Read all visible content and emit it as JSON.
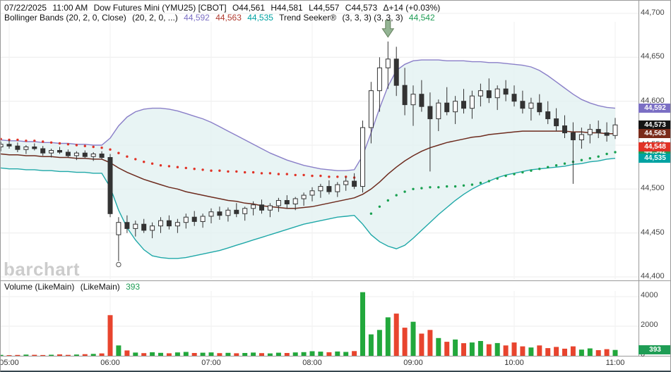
{
  "header": {
    "line1": {
      "date": "07/22/2025",
      "time": "11:00 AM",
      "symbol": "Dow Futures Mini (YMU25) [CBOT]",
      "open": "O44,561",
      "high": "H44,581",
      "low": "L44,557",
      "close": "C44,573",
      "change": "Δ+14 (+0.03%)"
    },
    "line2": {
      "bollinger_label": "Bollinger Bands (20, 2, 0, Close)",
      "bollinger_params": "(20, 2, 0, ...)",
      "bollinger_upper": "44,592",
      "bollinger_middle": "44,563",
      "bollinger_lower": "44,535",
      "trend_label": "Trend Seeker®",
      "trend_params": "(3, 3, 3)  (3, 3, 3)",
      "trend_value": "44,542"
    }
  },
  "watermark": "barchart",
  "volume_header": {
    "label": "Volume (LikeMain)",
    "params": "(LikeMain)",
    "value": "393"
  },
  "price_axis": {
    "ticks": [
      {
        "label": "44,700",
        "value": 44700
      },
      {
        "label": "44,650",
        "value": 44650
      },
      {
        "label": "44,600",
        "value": 44600
      },
      {
        "label": "44,550",
        "value": 44550
      },
      {
        "label": "44,500",
        "value": 44500
      },
      {
        "label": "44,450",
        "value": 44450
      },
      {
        "label": "44,400",
        "value": 44400
      }
    ],
    "badges": [
      {
        "label": "44,592",
        "value": 44592,
        "color": "#7b6fc4"
      },
      {
        "label": "44,573",
        "value": 44573,
        "color": "#141414"
      },
      {
        "label": "44,563",
        "value": 44563,
        "color": "#7a2b1a"
      },
      {
        "label": "44,542",
        "value": 44542,
        "color": "#1f9d55"
      },
      {
        "label": "44,548",
        "value": 44548,
        "color": "#e03226"
      },
      {
        "label": "44,535",
        "value": 44535,
        "color": "#00a2a2"
      }
    ]
  },
  "volume_axis": {
    "ticks": [
      {
        "label": "4000",
        "value": 4000
      },
      {
        "label": "2000",
        "value": 2000
      },
      {
        "label": "0",
        "value": 0
      }
    ],
    "badge": {
      "label": "393",
      "value": 393,
      "color": "#1f9d55"
    }
  },
  "time_axis": {
    "labels": [
      {
        "label": "05:00",
        "index": 1
      },
      {
        "label": "06:00",
        "index": 13
      },
      {
        "label": "07:00",
        "index": 25
      },
      {
        "label": "08:00",
        "index": 37
      },
      {
        "label": "09:00",
        "index": 49
      },
      {
        "label": "10:00",
        "index": 61
      },
      {
        "label": "11:00",
        "index": 73
      }
    ]
  },
  "chart_data": {
    "type": "candlestick",
    "title": "Dow Futures Mini (YMU25) [CBOT]",
    "ylim": [
      44400,
      44710
    ],
    "volume_ylim": [
      0,
      4400
    ],
    "legend": [
      "Bollinger Bands (20, 2, 0, Close)",
      "Trend Seeker (3, 3, 3)",
      "Volume (LikeMain)"
    ],
    "times": [
      "04:55",
      "05:00",
      "05:05",
      "05:10",
      "05:15",
      "05:20",
      "05:25",
      "05:30",
      "05:35",
      "05:40",
      "05:45",
      "05:50",
      "05:55",
      "06:00",
      "06:05",
      "06:10",
      "06:15",
      "06:20",
      "06:25",
      "06:30",
      "06:35",
      "06:40",
      "06:45",
      "06:50",
      "06:55",
      "07:00",
      "07:05",
      "07:10",
      "07:15",
      "07:20",
      "07:25",
      "07:30",
      "07:35",
      "07:40",
      "07:45",
      "07:50",
      "07:55",
      "08:00",
      "08:05",
      "08:10",
      "08:15",
      "08:20",
      "08:25",
      "08:30",
      "08:35",
      "08:40",
      "08:45",
      "08:50",
      "08:55",
      "09:00",
      "09:05",
      "09:10",
      "09:15",
      "09:20",
      "09:25",
      "09:30",
      "09:35",
      "09:40",
      "09:45",
      "09:50",
      "09:55",
      "10:00",
      "10:05",
      "10:10",
      "10:15",
      "10:20",
      "10:25",
      "10:30",
      "10:35",
      "10:40",
      "10:45",
      "10:50",
      "10:55",
      "11:00"
    ],
    "ohlc": [
      [
        44548,
        44554,
        44543,
        44551
      ],
      [
        44551,
        44556,
        44546,
        44549
      ],
      [
        44549,
        44553,
        44542,
        44545
      ],
      [
        44545,
        44550,
        44540,
        44548
      ],
      [
        44548,
        44552,
        44544,
        44546
      ],
      [
        44546,
        44549,
        44538,
        44541
      ],
      [
        44541,
        44546,
        44536,
        44544
      ],
      [
        44544,
        44548,
        44540,
        44542
      ],
      [
        44542,
        44545,
        44536,
        44538
      ],
      [
        44538,
        44543,
        44533,
        44541
      ],
      [
        44541,
        44544,
        44535,
        44537
      ],
      [
        44537,
        44542,
        44532,
        44540
      ],
      [
        44540,
        44543,
        44534,
        44536
      ],
      [
        44536,
        44540,
        44468,
        44472
      ],
      [
        44448,
        44468,
        44418,
        44462
      ],
      [
        44462,
        44470,
        44450,
        44455
      ],
      [
        44455,
        44464,
        44446,
        44460
      ],
      [
        44460,
        44466,
        44450,
        44453
      ],
      [
        44453,
        44462,
        44444,
        44458
      ],
      [
        44458,
        44468,
        44450,
        44464
      ],
      [
        44464,
        44470,
        44454,
        44458
      ],
      [
        44458,
        44466,
        44450,
        44462
      ],
      [
        44462,
        44472,
        44455,
        44468
      ],
      [
        44468,
        44475,
        44458,
        44463
      ],
      [
        44463,
        44472,
        44456,
        44469
      ],
      [
        44469,
        44478,
        44461,
        44474
      ],
      [
        44474,
        44480,
        44465,
        44470
      ],
      [
        44470,
        44479,
        44463,
        44476
      ],
      [
        44476,
        44484,
        44468,
        44472
      ],
      [
        44472,
        44480,
        44464,
        44478
      ],
      [
        44478,
        44486,
        44470,
        44482
      ],
      [
        44482,
        44488,
        44472,
        44476
      ],
      [
        44476,
        44484,
        44468,
        44481
      ],
      [
        44481,
        44490,
        44474,
        44487
      ],
      [
        44487,
        44493,
        44478,
        44483
      ],
      [
        44483,
        44491,
        44476,
        44489
      ],
      [
        44489,
        44496,
        44481,
        44493
      ],
      [
        44493,
        44502,
        44486,
        44498
      ],
      [
        44498,
        44506,
        44490,
        44503
      ],
      [
        44503,
        44510,
        44494,
        44497
      ],
      [
        44497,
        44508,
        44491,
        44505
      ],
      [
        44505,
        44514,
        44498,
        44509
      ],
      [
        44509,
        44518,
        44500,
        44503
      ],
      [
        44503,
        44578,
        44496,
        44570
      ],
      [
        44570,
        44622,
        44552,
        44612
      ],
      [
        44612,
        44650,
        44588,
        44638
      ],
      [
        44638,
        44668,
        44614,
        44648
      ],
      [
        44648,
        44662,
        44606,
        44618
      ],
      [
        44618,
        44638,
        44584,
        44596
      ],
      [
        44596,
        44618,
        44572,
        44608
      ],
      [
        44608,
        44624,
        44588,
        44594
      ],
      [
        44594,
        44610,
        44520,
        44580
      ],
      [
        44580,
        44602,
        44566,
        44598
      ],
      [
        44598,
        44616,
        44584,
        44588
      ],
      [
        44588,
        44606,
        44574,
        44600
      ],
      [
        44600,
        44614,
        44586,
        44592
      ],
      [
        44592,
        44612,
        44580,
        44606
      ],
      [
        44606,
        44620,
        44594,
        44612
      ],
      [
        44612,
        44626,
        44598,
        44604
      ],
      [
        44604,
        44618,
        44590,
        44614
      ],
      [
        44614,
        44624,
        44600,
        44608
      ],
      [
        44608,
        44618,
        44594,
        44600
      ],
      [
        44600,
        44612,
        44586,
        44592
      ],
      [
        44592,
        44604,
        44578,
        44598
      ],
      [
        44598,
        44608,
        44584,
        44588
      ],
      [
        44588,
        44600,
        44574,
        44580
      ],
      [
        44580,
        44592,
        44566,
        44572
      ],
      [
        44572,
        44584,
        44558,
        44564
      ],
      [
        44564,
        44576,
        44506,
        44556
      ],
      [
        44556,
        44570,
        44546,
        44562
      ],
      [
        44562,
        44574,
        44552,
        44568
      ],
      [
        44568,
        44578,
        44558,
        44564
      ],
      [
        44564,
        44576,
        44554,
        44561
      ],
      [
        44561,
        44581,
        44557,
        44573
      ]
    ],
    "volume": [
      60,
      45,
      55,
      80,
      65,
      50,
      70,
      95,
      60,
      85,
      110,
      130,
      160,
      2750,
      700,
      360,
      220,
      180,
      240,
      200,
      170,
      230,
      260,
      190,
      210,
      230,
      180,
      200,
      170,
      190,
      220,
      180,
      160,
      210,
      190,
      230,
      250,
      310,
      280,
      240,
      290,
      260,
      320,
      4300,
      1450,
      1750,
      2600,
      2850,
      1900,
      2300,
      1500,
      1750,
      1200,
      950,
      1100,
      850,
      900,
      1000,
      780,
      860,
      700,
      900,
      640,
      560,
      700,
      520,
      600,
      480,
      640,
      420,
      500,
      380,
      450,
      393
    ],
    "bollinger": {
      "upper": [
        44556,
        44555,
        44555,
        44554,
        44554,
        44553,
        44553,
        44552,
        44552,
        44551,
        44551,
        44550,
        44550,
        44558,
        44572,
        44582,
        44588,
        44591,
        44592,
        44592,
        44591,
        44589,
        44586,
        44583,
        44580,
        44576,
        44571,
        44566,
        44561,
        44556,
        44551,
        44546,
        44541,
        44537,
        44533,
        44530,
        44527,
        44525,
        44523,
        44522,
        44521,
        44521,
        44522,
        44538,
        44564,
        44592,
        44617,
        44635,
        44642,
        44646,
        44647,
        44647,
        44647,
        44646,
        44646,
        44646,
        44645,
        44645,
        44644,
        44644,
        44643,
        44642,
        44641,
        44639,
        44635,
        44629,
        44622,
        44615,
        44608,
        44602,
        44598,
        44595,
        44593,
        44592
      ],
      "middle": [
        44540,
        44539,
        44539,
        44538,
        44538,
        44537,
        44537,
        44536,
        44536,
        44535,
        44535,
        44534,
        44534,
        44530,
        44524,
        44519,
        44515,
        44511,
        44508,
        44505,
        44502,
        44500,
        44497,
        44495,
        44493,
        44491,
        44489,
        44487,
        44486,
        44484,
        44483,
        44481,
        44480,
        44479,
        44478,
        44478,
        44479,
        44480,
        44482,
        44484,
        44486,
        44488,
        44490,
        44494,
        44500,
        44508,
        44517,
        44525,
        44532,
        44538,
        44543,
        44547,
        44550,
        44553,
        44555,
        44557,
        44559,
        44560,
        44562,
        44563,
        44564,
        44565,
        44566,
        44566,
        44566,
        44566,
        44566,
        44566,
        44565,
        44565,
        44564,
        44564,
        44563,
        44563
      ],
      "lower": [
        44524,
        44523,
        44523,
        44522,
        44522,
        44521,
        44521,
        44520,
        44520,
        44519,
        44519,
        44518,
        44518,
        44502,
        44476,
        44456,
        44442,
        44431,
        44424,
        44422,
        44421,
        44421,
        44422,
        44424,
        44426,
        44428,
        44430,
        44433,
        44436,
        44439,
        44442,
        44445,
        44448,
        44451,
        44454,
        44457,
        44460,
        44462,
        44464,
        44466,
        44468,
        44469,
        44470,
        44460,
        44448,
        44440,
        44435,
        44432,
        44436,
        44444,
        44453,
        44462,
        44471,
        44479,
        44487,
        44494,
        44500,
        44505,
        44509,
        44513,
        44516,
        44518,
        44520,
        44522,
        44523,
        44524,
        44525,
        44526,
        44528,
        44529,
        44531,
        44532,
        44534,
        44535
      ]
    },
    "trend_seeker": {
      "green_start": 44,
      "values": [
        44557,
        44556,
        44556,
        44555,
        44555,
        44554,
        44553,
        44552,
        44551,
        44550,
        44549,
        44548,
        44547,
        44545,
        44541,
        44537,
        44534,
        44531,
        44529,
        44527,
        44526,
        44525,
        44524,
        44523,
        44522,
        44521,
        44521,
        44520,
        44520,
        44519,
        44519,
        44518,
        44518,
        44517,
        44517,
        44516,
        44516,
        44515,
        44515,
        44514,
        44514,
        44514,
        44513,
        44513,
        44472,
        44480,
        44487,
        44493,
        44497,
        44500,
        44501,
        44502,
        44502,
        44503,
        44503,
        44504,
        44505,
        44507,
        44509,
        44512,
        44515,
        44517,
        44519,
        44521,
        44523,
        44525,
        44527,
        44529,
        44531,
        44533,
        44535,
        44537,
        44540,
        44542
      ]
    },
    "markers": {
      "sell_arrow": {
        "index": 46,
        "price": 44673
      },
      "signal_circle": {
        "index": 14,
        "price": 44414
      }
    },
    "colors": {
      "band_fill": "#e2f1f1",
      "band_upper": "#8a7fc8",
      "band_lower": "#1fa8a8",
      "band_middle": "#6d2b1e",
      "trend_red": "#e03226",
      "trend_green": "#18a050",
      "candle_up": "#ffffff",
      "candle_down": "#333333",
      "candle_line": "#333333",
      "vol_up": "#22a83c",
      "vol_down": "#e8442e",
      "arrow_fill": "#93b493",
      "arrow_stroke": "#66825f"
    }
  }
}
